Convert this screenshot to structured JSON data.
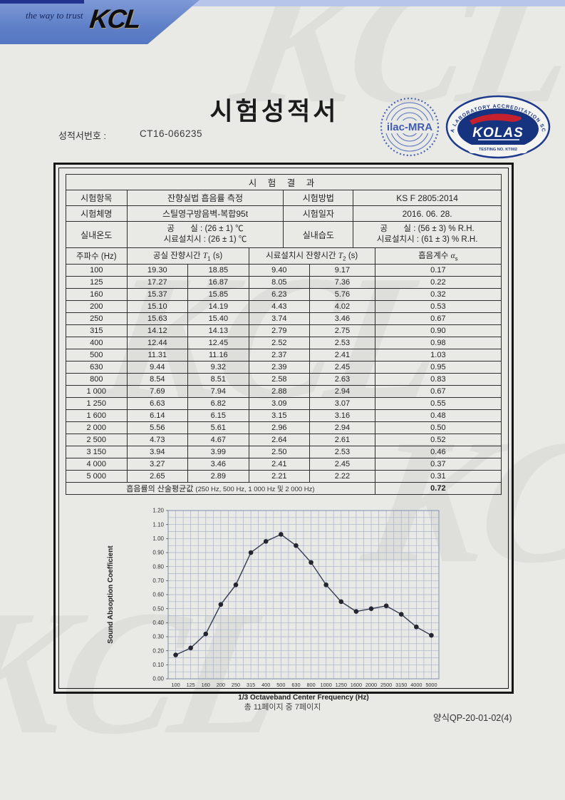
{
  "header": {
    "tagline": "the way to trust",
    "logo": "KCL",
    "title": "시험성적서",
    "report_no_label": "성적서번호 :",
    "report_no": "CT16-066235",
    "ilac_seal_text": "ilac-MRA",
    "kolas": {
      "ring_text": "KOREA LABORATORY ACCREDITATION SCHEME",
      "name": "KOLAS",
      "sub_text": "TESTING  NO. KT002"
    }
  },
  "table": {
    "title": "시 험 결 과",
    "info_rows": [
      {
        "label1": "시험항목",
        "value1": "잔향실법 흡음률 측정",
        "label2": "시험방법",
        "value2": "KS F 2805:2014"
      },
      {
        "label1": "시험체명",
        "value1": "스틸영구방음벽-복합95t",
        "label2": "시험일자",
        "value2": "2016. 06. 28."
      }
    ],
    "env_row": {
      "label1": "실내온도",
      "value1_line1": "공       실 : (26 ± 1) ℃",
      "value1_line2": "시료설치시 : (26 ± 1) ℃",
      "label2": "실내습도",
      "value2_line1": "공       실 : (56 ± 3) % R.H.",
      "value2_line2": "시료설치시 : (61 ± 3) % R.H."
    },
    "col_headers": {
      "freq": "주파수 (Hz)",
      "t1": {
        "prefix": "공실 잔향시간",
        "sym": "T",
        "sub": "1",
        "suffix": "(s)"
      },
      "t2": {
        "prefix": "시료설치시 잔향시간",
        "sym": "T",
        "sub": "2",
        "suffix": "(s)"
      },
      "alpha": {
        "prefix": "흡음계수",
        "sym": "α",
        "sub": "s"
      }
    },
    "rows": [
      [
        "100",
        "19.30",
        "18.85",
        "9.40",
        "9.17",
        "0.17"
      ],
      [
        "125",
        "17.27",
        "16.87",
        "8.05",
        "7.36",
        "0.22"
      ],
      [
        "160",
        "15.37",
        "15.85",
        "6.23",
        "5.76",
        "0.32"
      ],
      [
        "200",
        "15.10",
        "14.19",
        "4.43",
        "4.02",
        "0.53"
      ],
      [
        "250",
        "15.63",
        "15.40",
        "3.74",
        "3.46",
        "0.67"
      ],
      [
        "315",
        "14.12",
        "14.13",
        "2.79",
        "2.75",
        "0.90"
      ],
      [
        "400",
        "12.44",
        "12.45",
        "2.52",
        "2.53",
        "0.98"
      ],
      [
        "500",
        "11.31",
        "11.16",
        "2.37",
        "2.41",
        "1.03"
      ],
      [
        "630",
        "9.44",
        "9.32",
        "2.39",
        "2.45",
        "0.95"
      ],
      [
        "800",
        "8.54",
        "8.51",
        "2.58",
        "2.63",
        "0.83"
      ],
      [
        "1 000",
        "7.69",
        "7.94",
        "2.88",
        "2.94",
        "0.67"
      ],
      [
        "1 250",
        "6.63",
        "6.82",
        "3.09",
        "3.07",
        "0.55"
      ],
      [
        "1 600",
        "6.14",
        "6.15",
        "3.15",
        "3.16",
        "0.48"
      ],
      [
        "2 000",
        "5.56",
        "5.61",
        "2.96",
        "2.94",
        "0.50"
      ],
      [
        "2 500",
        "4.73",
        "4.67",
        "2.64",
        "2.61",
        "0.52"
      ],
      [
        "3 150",
        "3.94",
        "3.99",
        "2.50",
        "2.53",
        "0.46"
      ],
      [
        "4 000",
        "3.27",
        "3.46",
        "2.41",
        "2.45",
        "0.37"
      ],
      [
        "5 000",
        "2.65",
        "2.89",
        "2.21",
        "2.22",
        "0.31"
      ]
    ],
    "avg_label": "흡음률의 산술평균값",
    "avg_note": "(250 Hz, 500 Hz, 1 000 Hz 및 2 000 Hz)",
    "avg_value": "0.72"
  },
  "chart_data": {
    "type": "line",
    "categories": [
      "100",
      "125",
      "160",
      "200",
      "250",
      "315",
      "400",
      "500",
      "630",
      "800",
      "1000",
      "1250",
      "1600",
      "2000",
      "2500",
      "3150",
      "4000",
      "5000"
    ],
    "values": [
      0.17,
      0.22,
      0.32,
      0.53,
      0.67,
      0.9,
      0.98,
      1.03,
      0.95,
      0.83,
      0.67,
      0.55,
      0.48,
      0.5,
      0.52,
      0.46,
      0.37,
      0.31
    ],
    "xlabel": "1/3 Octaveband Center Frequency (Hz)",
    "ylabel": "Sound Absoption Coefficient",
    "ylim": [
      0.0,
      1.2
    ],
    "ytick_step": 0.1,
    "minor_grid_step": 0.05,
    "grid": true,
    "legend": "none",
    "line_color": "#343c50",
    "marker_color": "#23262f",
    "grid_color": "#a9b2cd"
  },
  "footer": {
    "page_info": "총 11페이지 중 7페이지",
    "form_no": "양식QP-20-01-02(4)"
  },
  "watermark": "KCL"
}
